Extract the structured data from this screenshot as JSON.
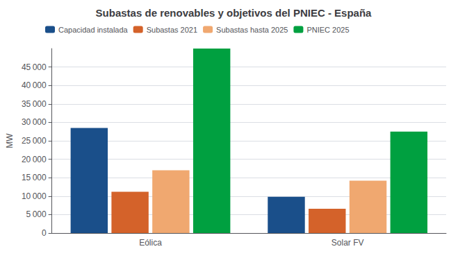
{
  "chart_data": {
    "type": "bar",
    "title": "Subastas de renovables y objetivos del PNIEC - España",
    "ylabel": "MW",
    "categories": [
      "Eólica",
      "Solar FV"
    ],
    "series": [
      {
        "name": "Capacidad instalada",
        "color": "#1a4f8a",
        "values": [
          28500,
          9800
        ]
      },
      {
        "name": "Subastas 2021",
        "color": "#d4622a",
        "values": [
          11200,
          6600
        ]
      },
      {
        "name": "Subastas hasta 2025",
        "color": "#f0a870",
        "values": [
          17000,
          14200
        ]
      },
      {
        "name": "PNIEC 2025",
        "color": "#00a040",
        "values": [
          50000,
          27500
        ]
      }
    ],
    "ylim": [
      0,
      50000
    ],
    "yticks": [
      0,
      {
        "value": 5000,
        "label": "5 000"
      },
      {
        "value": 10000,
        "label": "10 000"
      },
      {
        "value": 15000,
        "label": "15 000"
      },
      {
        "value": 20000,
        "label": "20 000"
      },
      {
        "value": 25000,
        "label": "25 000"
      },
      {
        "value": 30000,
        "label": "30 000"
      },
      {
        "value": 35000,
        "label": "35 000"
      },
      {
        "value": 40000,
        "label": "40 000"
      },
      {
        "value": 45000,
        "label": "45 000"
      }
    ],
    "grid": true,
    "legend": "upper left"
  }
}
